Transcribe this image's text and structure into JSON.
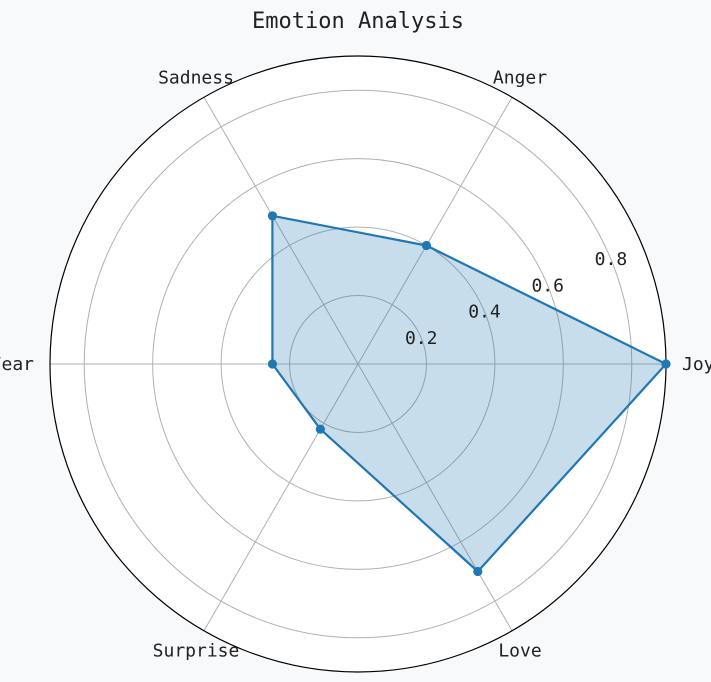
{
  "chart_data": {
    "type": "radar",
    "title": "Emotion Analysis",
    "categories": [
      "Joy",
      "Anger",
      "Sadness",
      "Fear",
      "Surprise",
      "Love"
    ],
    "values": [
      0.9,
      0.4,
      0.5,
      0.25,
      0.22,
      0.7
    ],
    "rlim": [
      0,
      0.9
    ],
    "r_ticks": [
      0.2,
      0.4,
      0.6,
      0.8
    ],
    "r_tick_labels": [
      "0.2",
      "0.4",
      "0.6",
      "0.8"
    ],
    "grid": true,
    "legend": "none",
    "colors": {
      "line": "#1f77b4",
      "fill": "#1f77b4",
      "grid": "#b0b0b0",
      "spine": "#000000",
      "background": "#f7f9fb",
      "plot_background": "#ffffff"
    }
  }
}
